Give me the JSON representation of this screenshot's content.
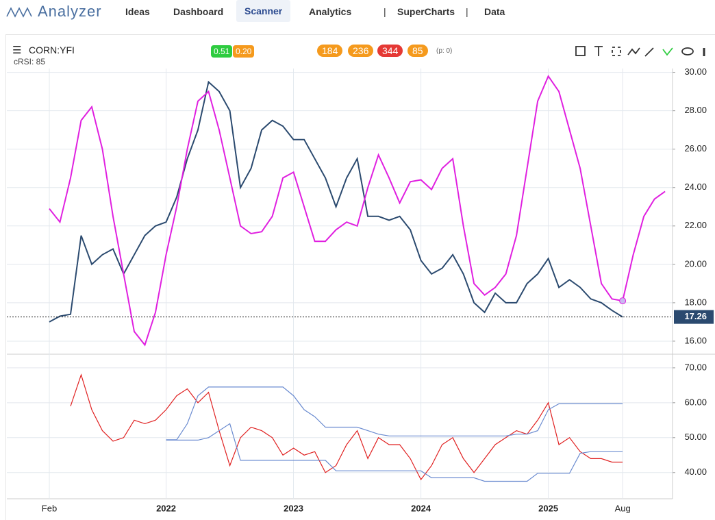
{
  "nav": {
    "brand": "Analyzer",
    "items": [
      "Ideas",
      "Dashboard",
      "Scanner",
      "Analytics",
      "|",
      "SuperCharts",
      "|",
      "Data"
    ]
  },
  "header": {
    "symbol": "CORN:YFI",
    "indicator": "cRSI: 85",
    "badges": [
      "0.51",
      "0.20",
      "184",
      "236",
      "344",
      "85"
    ],
    "note": "(p: 0)"
  },
  "chart_data": [
    {
      "type": "line",
      "x": [
        4,
        5,
        6,
        7,
        8,
        9,
        10,
        11,
        12,
        13,
        14,
        15,
        16,
        17,
        18,
        19,
        20,
        21,
        22,
        23,
        24,
        25,
        26,
        27,
        28,
        29,
        30,
        31,
        32,
        33,
        34,
        35,
        36,
        37,
        38,
        39,
        40,
        41,
        42,
        43,
        44,
        45,
        46,
        47,
        48,
        49,
        50,
        51,
        52,
        53,
        54,
        55,
        56,
        57,
        58,
        59,
        60,
        61,
        62
      ],
      "xlim": [
        0,
        62.7
      ],
      "ylim": [
        15.32,
        30.2
      ],
      "yticks": [
        {
          "value": 16,
          "label": "16.00"
        },
        {
          "value": 18,
          "label": "18.00"
        },
        {
          "value": 20,
          "label": "20.00"
        },
        {
          "value": 22,
          "label": "22.00"
        },
        {
          "value": 24,
          "label": "24.00"
        },
        {
          "value": 26,
          "label": "26.00"
        },
        {
          "value": 28,
          "label": "28.00"
        },
        {
          "value": 30,
          "label": "30.00"
        }
      ],
      "grid": true,
      "last_value": 17.26,
      "series": [
        {
          "color": "#2b4a6f",
          "values": [
            17.0,
            17.3,
            17.4,
            21.5,
            20.0,
            20.5,
            20.8,
            19.5,
            20.5,
            21.5,
            22.0,
            22.2,
            23.5,
            25.5,
            27.0,
            29.5,
            29.0,
            28.0,
            24.0,
            25.0,
            27.0,
            27.5,
            27.2,
            26.5,
            26.5,
            25.5,
            24.5,
            23.0,
            24.5,
            25.5,
            22.5,
            22.5,
            22.3,
            22.5,
            21.8,
            20.2,
            19.5,
            19.8,
            20.5,
            19.5,
            18.0,
            17.5,
            18.5,
            18.0,
            18.0,
            19.0,
            19.5,
            20.3,
            18.8,
            19.2,
            18.8,
            18.2,
            18.0,
            17.6,
            17.26,
            null,
            null,
            null,
            null
          ]
        },
        {
          "color": "#e020e0",
          "values": [
            22.9,
            22.2,
            24.5,
            27.5,
            28.2,
            26.0,
            22.5,
            19.5,
            16.5,
            15.8,
            17.5,
            20.5,
            23.0,
            26.0,
            28.5,
            29.0,
            27.0,
            24.5,
            22.0,
            21.6,
            21.7,
            22.5,
            24.5,
            24.8,
            23.0,
            21.2,
            21.2,
            21.8,
            22.2,
            22.0,
            24.0,
            25.7,
            24.5,
            23.2,
            24.3,
            24.4,
            23.9,
            25.0,
            25.5,
            22.0,
            19.0,
            18.4,
            18.8,
            19.5,
            21.5,
            25.0,
            28.5,
            29.8,
            29.0,
            27.0,
            25.0,
            22.0,
            19.0,
            18.2,
            18.1,
            20.5,
            22.5,
            23.4,
            23.8
          ]
        }
      ]
    },
    {
      "type": "line",
      "x": [
        4,
        5,
        6,
        7,
        8,
        9,
        10,
        11,
        12,
        13,
        14,
        15,
        16,
        17,
        18,
        19,
        20,
        21,
        22,
        23,
        24,
        25,
        26,
        27,
        28,
        29,
        30,
        31,
        32,
        33,
        34,
        35,
        36,
        37,
        38,
        39,
        40,
        41,
        42,
        43,
        44,
        45,
        46,
        47,
        48,
        49,
        50,
        51,
        52,
        53,
        54,
        55,
        56,
        57,
        58,
        59,
        60,
        61,
        62
      ],
      "xlim": [
        0,
        62.7
      ],
      "ylim": [
        32.5,
        73.9
      ],
      "yticks": [
        {
          "value": 40,
          "label": "40.00"
        },
        {
          "value": 50,
          "label": "50.00"
        },
        {
          "value": 60,
          "label": "60.00"
        },
        {
          "value": 70,
          "label": "70.00"
        }
      ],
      "xticks": [
        {
          "value": 4,
          "label": "Feb"
        },
        {
          "value": 15,
          "label": "2022"
        },
        {
          "value": 27,
          "label": "2023"
        },
        {
          "value": 39,
          "label": "2024"
        },
        {
          "value": 51,
          "label": "2025"
        },
        {
          "value": 58,
          "label": "Aug"
        }
      ],
      "grid": true,
      "series": [
        {
          "color": "#e02020",
          "values": [
            null,
            null,
            59,
            68,
            58,
            52,
            49,
            50,
            55,
            54,
            55,
            58,
            62,
            64,
            60,
            63,
            52,
            42,
            50,
            53,
            52,
            50,
            45,
            47,
            45,
            46,
            40,
            42,
            48,
            52,
            44,
            50,
            48,
            48,
            44,
            38,
            42,
            48,
            50,
            44,
            40,
            44,
            48,
            50,
            52,
            51,
            55,
            60,
            48,
            50,
            46,
            44,
            44,
            43,
            43,
            null,
            null,
            null,
            null
          ]
        },
        {
          "color": "#6a8bd0",
          "values": [
            null,
            null,
            null,
            null,
            null,
            null,
            null,
            null,
            null,
            null,
            null,
            49.4,
            49.4,
            54,
            62,
            64.5,
            64.5,
            64.5,
            64.5,
            64.5,
            64.5,
            64.5,
            64.5,
            62,
            58,
            56,
            53,
            53,
            53,
            53,
            52,
            51,
            50.5,
            50.5,
            50.5,
            50.5,
            50.5,
            50.5,
            50.5,
            50.5,
            50.5,
            50.5,
            50.5,
            50.5,
            51,
            51,
            52,
            58,
            59.7,
            59.7,
            59.7,
            59.7,
            59.7,
            59.7,
            59.7,
            null,
            null,
            null,
            null
          ]
        },
        {
          "color": "#6a8bd0",
          "values": [
            null,
            null,
            null,
            null,
            null,
            null,
            null,
            null,
            null,
            null,
            null,
            49.3,
            49.3,
            49.3,
            49.3,
            50,
            52,
            54,
            43.5,
            43.5,
            43.5,
            43.5,
            43.5,
            43.5,
            43.5,
            43.5,
            43.5,
            40.5,
            40.5,
            40.5,
            40.5,
            40.5,
            40.5,
            40.5,
            40.5,
            40.5,
            38.5,
            38.5,
            38.5,
            38.5,
            38.5,
            37.5,
            37.5,
            37.5,
            37.5,
            37.5,
            39.8,
            39.8,
            39.8,
            39.8,
            45.5,
            46,
            46,
            46,
            46,
            null,
            null,
            null,
            null
          ]
        }
      ]
    }
  ]
}
